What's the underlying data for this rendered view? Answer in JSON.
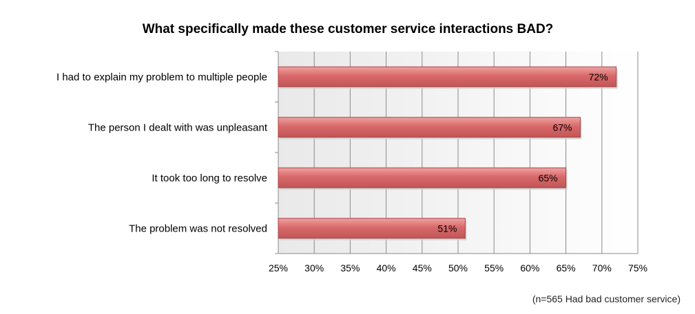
{
  "chart_data": {
    "type": "bar",
    "orientation": "horizontal",
    "title": "What specifically made these customer service interactions BAD?",
    "footnote": "(n=565 Had bad customer service)",
    "categories": [
      "I had to explain my problem to multiple people",
      "The person I dealt with was unpleasant",
      "It took too long to resolve",
      "The problem was not resolved"
    ],
    "values": [
      72,
      67,
      65,
      51
    ],
    "value_labels": [
      "72%",
      "67%",
      "65%",
      "51%"
    ],
    "x_ticks": [
      "25%",
      "30%",
      "35%",
      "40%",
      "45%",
      "50%",
      "55%",
      "60%",
      "65%",
      "70%",
      "75%"
    ],
    "xlim": [
      25,
      75
    ],
    "xlabel": "",
    "ylabel": "",
    "grid": "vertical",
    "legend": "none",
    "colors": {
      "bar": "#d9696a",
      "bar_edge": "#a64545",
      "plot_bg": "#f2f2f2",
      "grid": "#8a8a8a"
    }
  }
}
